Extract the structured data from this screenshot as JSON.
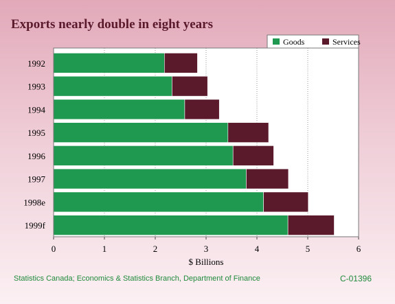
{
  "chart_data": {
    "type": "bar",
    "orientation": "horizontal",
    "stacked": true,
    "title": "Exports nearly double in eight years",
    "xlabel": "$ Billions",
    "ylabel": "",
    "xlim": [
      0,
      6
    ],
    "x_ticks": [
      "0",
      "1",
      "2",
      "3",
      "4",
      "5",
      "6"
    ],
    "grid": "vertical dotted",
    "legend_position": "top-right",
    "categories": [
      "1992",
      "1993",
      "1994",
      "1995",
      "1996",
      "1997",
      "1998e",
      "1999f"
    ],
    "series": [
      {
        "name": "Goods",
        "color": "#1f9850",
        "values": [
          2.18,
          2.33,
          2.58,
          3.43,
          3.53,
          3.79,
          4.13,
          4.61
        ]
      },
      {
        "name": "Services",
        "color": "#5a1a2c",
        "values": [
          0.65,
          0.7,
          0.68,
          0.8,
          0.8,
          0.83,
          0.88,
          0.91
        ]
      }
    ]
  },
  "footer": {
    "source": "Statistics Canada; Economics & Statistics Branch, Department of Finance",
    "code": "C-01396"
  }
}
